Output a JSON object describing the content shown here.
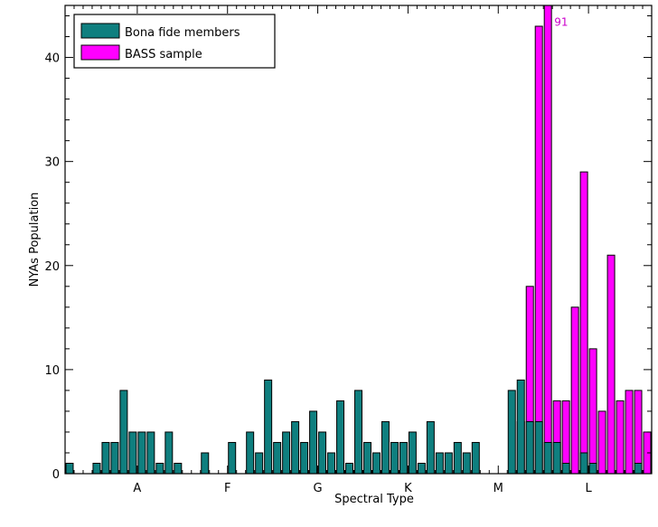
{
  "chart_data": {
    "type": "bar",
    "title": "",
    "xlabel": "Spectral Type",
    "ylabel": "NYAs Population",
    "ylim": [
      0,
      45
    ],
    "y_ticks": [
      "0",
      "10",
      "20",
      "30",
      "40"
    ],
    "y_tick_values": [
      0,
      10,
      20,
      30,
      40
    ],
    "x_tick_labels": [
      "A",
      "F",
      "G",
      "K",
      "M",
      "L"
    ],
    "x_tick_positions": [
      8,
      18,
      28,
      38,
      48,
      58
    ],
    "bins_count": 65,
    "legend": {
      "placement": "top-left"
    },
    "series": [
      {
        "name": "Bona fide members",
        "color": "#0f7f7f",
        "bins": [
          0,
          1,
          3,
          4,
          5,
          6,
          7,
          8,
          9,
          10,
          11,
          12,
          13,
          15,
          18,
          20,
          21,
          22,
          23,
          24,
          25,
          26,
          27,
          28,
          29,
          30,
          31,
          32,
          33,
          34,
          35,
          36,
          37,
          38,
          39,
          40,
          41,
          42,
          43,
          44,
          45,
          46,
          47,
          48,
          49,
          50,
          51,
          52,
          53,
          54,
          55,
          56,
          57,
          58,
          59,
          60,
          61,
          62,
          63,
          64
        ],
        "values": [
          1,
          0,
          1,
          3,
          3,
          8,
          4,
          4,
          4,
          1,
          4,
          1,
          0,
          2,
          3,
          4,
          2,
          9,
          3,
          4,
          5,
          3,
          6,
          4,
          2,
          7,
          1,
          8,
          3,
          2,
          5,
          3,
          3,
          4,
          1,
          5,
          2,
          2,
          3,
          2,
          3,
          0,
          0,
          0,
          8,
          9,
          5,
          5,
          3,
          3,
          1,
          0,
          2,
          1,
          0,
          0,
          0,
          0,
          1,
          0
        ]
      },
      {
        "name": "BASS sample",
        "color": "#ff00ff",
        "bins": [
          50,
          51,
          52,
          53,
          54,
          55,
          56,
          57,
          58,
          59,
          60,
          61,
          62,
          63,
          64
        ],
        "values": [
          5,
          18,
          43,
          91,
          7,
          7,
          16,
          29,
          12,
          6,
          21,
          7,
          8,
          8,
          4
        ]
      }
    ],
    "annotations": [
      {
        "text": "91",
        "bin": 53,
        "y": 43.5,
        "color": "#cc00cc"
      }
    ]
  }
}
